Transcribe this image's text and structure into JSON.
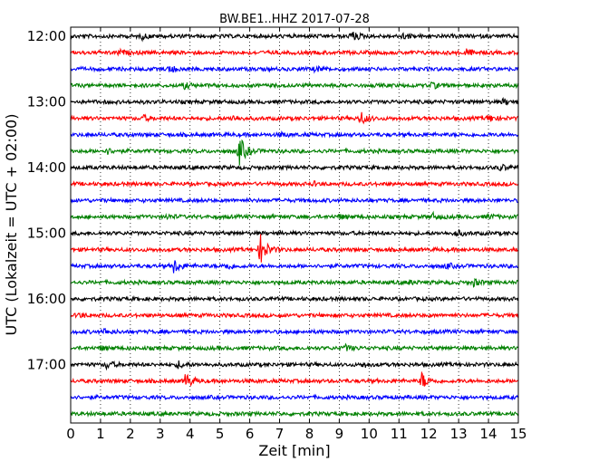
{
  "chart_data": {
    "type": "line",
    "title": "BW.BE1..HHZ 2017-07-28",
    "xlabel": "Zeit  [min]",
    "ylabel": "UTC (Lokalzeit = UTC + 02:00)",
    "xlim": [
      0,
      15
    ],
    "x_ticks": [
      "0",
      "1",
      "2",
      "3",
      "4",
      "5",
      "6",
      "7",
      "8",
      "9",
      "10",
      "11",
      "12",
      "13",
      "14",
      "15"
    ],
    "y_ticks": [
      "12:00",
      "13:00",
      "14:00",
      "15:00",
      "16:00",
      "17:00"
    ],
    "grid": "vertical dotted",
    "trace_colors": [
      "#000000",
      "#ff0000",
      "#0000ff",
      "#008000"
    ],
    "series": [
      {
        "start": "12:00",
        "color": "#000000",
        "events": [
          [
            2.4,
            0.25
          ],
          [
            9.4,
            0.6
          ],
          [
            11.1,
            0.3
          ]
        ]
      },
      {
        "start": "12:15",
        "color": "#ff0000",
        "events": [
          [
            1.6,
            0.25
          ],
          [
            13.2,
            0.45
          ]
        ]
      },
      {
        "start": "12:30",
        "color": "#0000ff",
        "events": [
          [
            3.3,
            0.35
          ],
          [
            8.2,
            0.25
          ]
        ]
      },
      {
        "start": "12:45",
        "color": "#008000",
        "events": [
          [
            3.8,
            0.3
          ],
          [
            12.1,
            0.3
          ]
        ]
      },
      {
        "start": "13:00",
        "color": "#000000",
        "events": [
          [
            14.5,
            0.3
          ]
        ]
      },
      {
        "start": "13:15",
        "color": "#ff0000",
        "events": [
          [
            2.4,
            0.3
          ],
          [
            5.4,
            0.3
          ],
          [
            9.7,
            0.75
          ],
          [
            14.0,
            0.4
          ]
        ]
      },
      {
        "start": "13:30",
        "color": "#0000ff",
        "events": [
          [
            7.0,
            0.2
          ]
        ]
      },
      {
        "start": "13:45",
        "color": "#008000",
        "events": [
          [
            1.2,
            0.3
          ],
          [
            5.65,
            1.6
          ]
        ]
      },
      {
        "start": "14:00",
        "color": "#000000",
        "events": [
          [
            14.4,
            0.3
          ]
        ]
      },
      {
        "start": "14:15",
        "color": "#ff0000",
        "events": [
          [
            8.1,
            0.2
          ]
        ]
      },
      {
        "start": "14:30",
        "color": "#0000ff",
        "events": []
      },
      {
        "start": "14:45",
        "color": "#008000",
        "events": [
          [
            3.2,
            0.2
          ],
          [
            9.0,
            0.2
          ],
          [
            12.1,
            0.35
          ],
          [
            14.0,
            0.2
          ]
        ]
      },
      {
        "start": "15:00",
        "color": "#000000",
        "events": [
          [
            12.9,
            0.35
          ]
        ]
      },
      {
        "start": "15:15",
        "color": "#ff0000",
        "events": [
          [
            6.35,
            1.8
          ]
        ]
      },
      {
        "start": "15:30",
        "color": "#0000ff",
        "events": [
          [
            3.45,
            0.8
          ],
          [
            5.2,
            0.4
          ],
          [
            12.6,
            0.25
          ]
        ]
      },
      {
        "start": "15:45",
        "color": "#008000",
        "events": [
          [
            11.3,
            0.2
          ],
          [
            13.5,
            0.35
          ]
        ]
      },
      {
        "start": "16:00",
        "color": "#000000",
        "events": []
      },
      {
        "start": "16:15",
        "color": "#ff0000",
        "events": [
          [
            0.25,
            0.25
          ]
        ]
      },
      {
        "start": "16:30",
        "color": "#0000ff",
        "events": [
          [
            1.1,
            0.3
          ]
        ]
      },
      {
        "start": "16:45",
        "color": "#008000",
        "events": [
          [
            1.0,
            0.2
          ],
          [
            9.2,
            0.3
          ]
        ]
      },
      {
        "start": "17:00",
        "color": "#000000",
        "events": [
          [
            1.2,
            0.4
          ],
          [
            3.6,
            0.35
          ],
          [
            9.8,
            0.25
          ]
        ]
      },
      {
        "start": "17:15",
        "color": "#ff0000",
        "events": [
          [
            3.85,
            0.9
          ],
          [
            11.75,
            0.95
          ]
        ]
      },
      {
        "start": "17:30",
        "color": "#0000ff",
        "events": []
      },
      {
        "start": "17:45",
        "color": "#008000",
        "events": []
      }
    ]
  }
}
